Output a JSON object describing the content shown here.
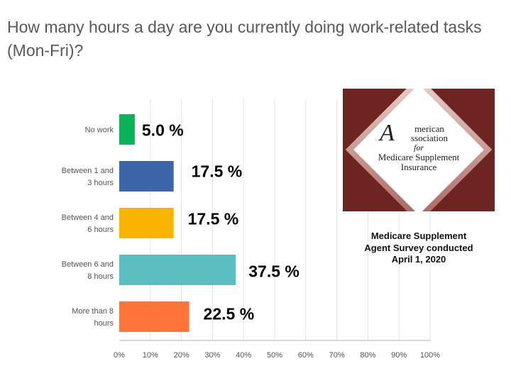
{
  "chart_data": {
    "type": "bar",
    "orientation": "horizontal",
    "title": "How many hours a day are you currently doing work-related tasks (Mon-Fri)?",
    "categories": [
      [
        "No work"
      ],
      [
        "Between 1 and",
        "3 hours"
      ],
      [
        "Between 4 and",
        "6 hours"
      ],
      [
        "Between 6 and",
        "8 hours"
      ],
      [
        "More than 8",
        "hours"
      ]
    ],
    "values": [
      5.0,
      17.5,
      17.5,
      37.5,
      22.5
    ],
    "data_labels": [
      "5.0 %",
      "17.5 %",
      "17.5 %",
      "37.5 %",
      "22.5 %"
    ],
    "colors": [
      "#0bb557",
      "#3d65a9",
      "#f8b400",
      "#5bbfc2",
      "#fd7539"
    ],
    "xlim": [
      0,
      100
    ],
    "x_ticks": [
      "0%",
      "10%",
      "20%",
      "30%",
      "40%",
      "50%",
      "60%",
      "70%",
      "80%",
      "90%",
      "100%"
    ],
    "grid": true,
    "xlabel": "",
    "ylabel": ""
  },
  "logo": {
    "line1": "merican",
    "big_letter": "A",
    "line2": "ssociation",
    "line3": "for",
    "line4": "Medicare Supplement",
    "line5": "Insurance"
  },
  "caption": [
    "Medicare Supplement",
    "Agent Survey conducted",
    "April 1, 2020"
  ]
}
